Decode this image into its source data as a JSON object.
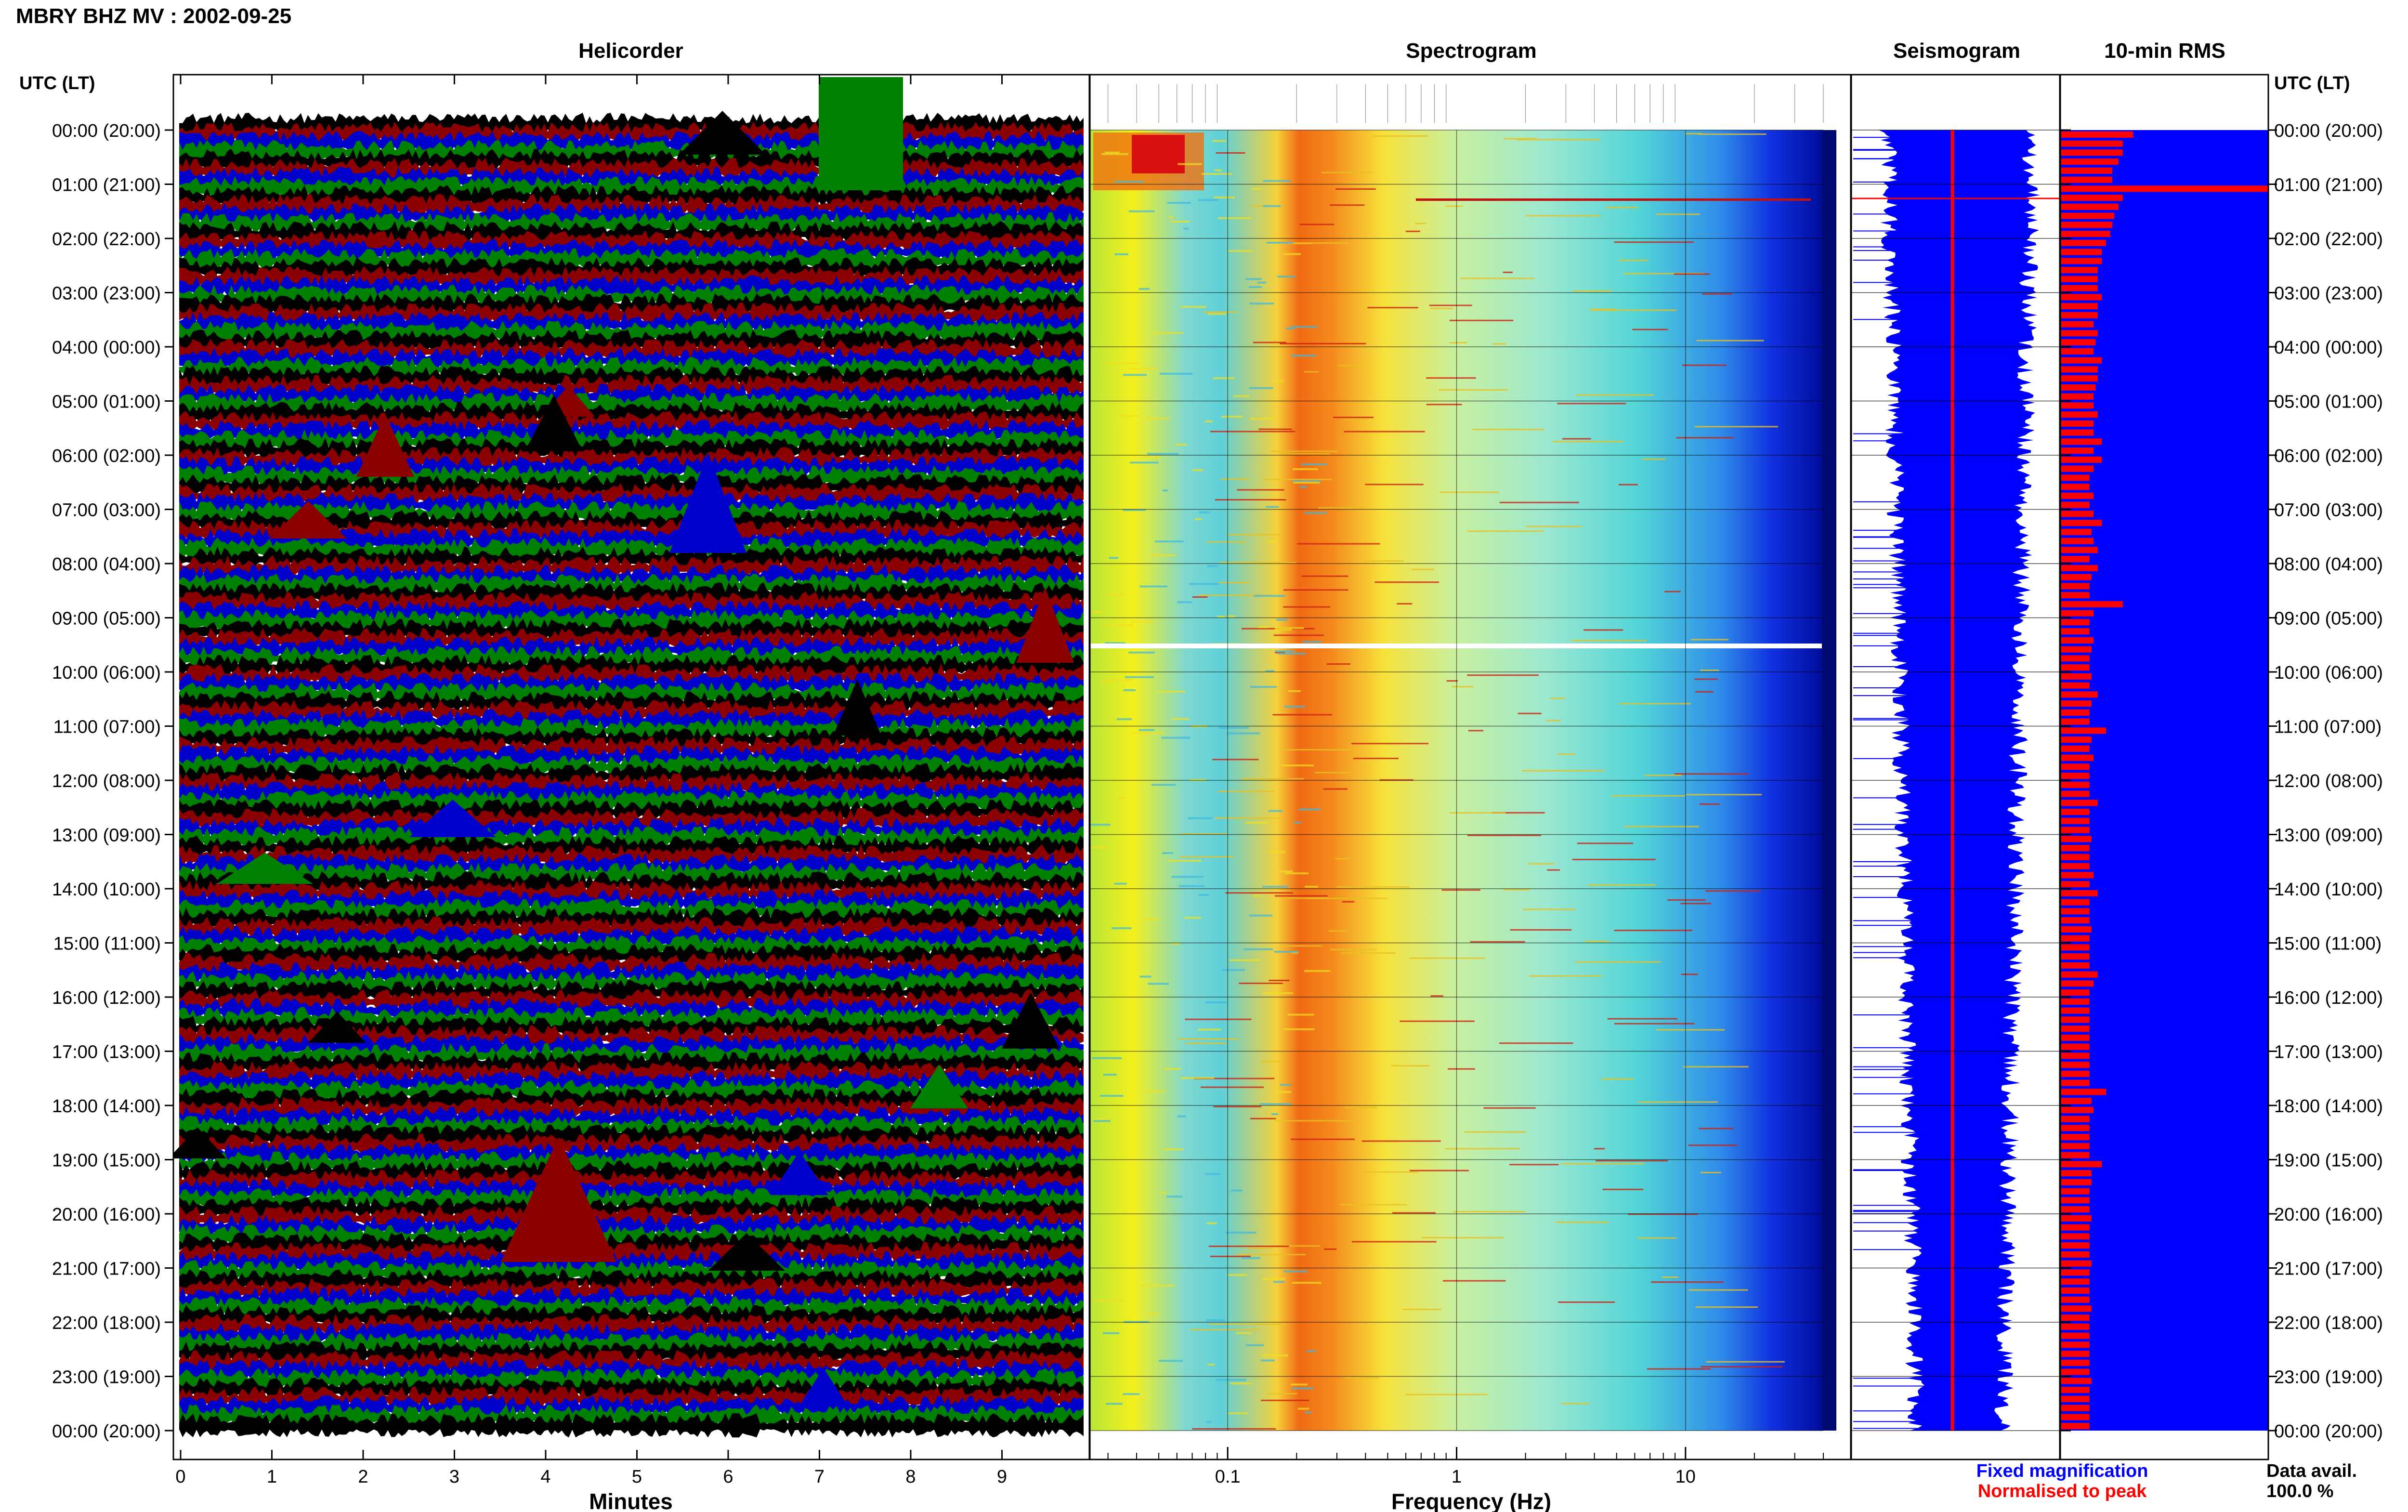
{
  "title": "MBRY BHZ MV : 2002-09-25",
  "panels": {
    "helicorder": "Helicorder",
    "spectrogram": "Spectrogram",
    "seismogram": "Seismogram",
    "rms": "10-min RMS"
  },
  "axis_header_left": "UTC (LT)",
  "axis_header_right": "UTC (LT)",
  "time_labels": [
    "00:00 (20:00)",
    "01:00 (21:00)",
    "02:00 (22:00)",
    "03:00 (23:00)",
    "04:00 (00:00)",
    "05:00 (01:00)",
    "06:00 (02:00)",
    "07:00 (03:00)",
    "08:00 (04:00)",
    "09:00 (05:00)",
    "10:00 (06:00)",
    "11:00 (07:00)",
    "12:00 (08:00)",
    "13:00 (09:00)",
    "14:00 (10:00)",
    "15:00 (11:00)",
    "16:00 (12:00)",
    "17:00 (13:00)",
    "18:00 (14:00)",
    "19:00 (15:00)",
    "20:00 (16:00)",
    "21:00 (17:00)",
    "22:00 (18:00)",
    "23:00 (19:00)",
    "00:00 (20:00)"
  ],
  "helicorder_xlabel": "Minutes",
  "helicorder_ticks": [
    "0",
    "1",
    "2",
    "3",
    "4",
    "5",
    "6",
    "7",
    "8",
    "9"
  ],
  "spectrogram_xlabel": "Frequency (Hz)",
  "spectrogram_ticks": [
    "0.1",
    "1",
    "10"
  ],
  "legend": {
    "fixed": "Fixed magnification",
    "normalised": "Normalised to peak",
    "fixed_color": "#0000ff",
    "normalised_color": "#ff0000"
  },
  "data_avail_label": "Data avail.",
  "data_avail_value": "100.0 %",
  "colors": {
    "trace_cycle": [
      "#000000",
      "#8b0000",
      "#0000cd",
      "#008000"
    ],
    "rms_fill": "#0000ff",
    "rms_bar": "#ff0000",
    "seismogram_fill": "#0000ff",
    "seismogram_center": "#ff0000"
  },
  "chart_data": [
    {
      "type": "line",
      "name": "helicorder",
      "xlabel": "Minutes",
      "xlim": [
        0,
        10
      ],
      "ylim_hours": [
        0,
        24
      ]
    },
    {
      "type": "heatmap",
      "name": "spectrogram",
      "xlabel": "Frequency (Hz)",
      "x_scale": "log",
      "xlim": [
        0.025,
        40
      ],
      "ylim_hours": [
        0,
        24
      ]
    },
    {
      "type": "bar",
      "name": "10-min RMS",
      "ylim_hours": [
        0,
        24
      ],
      "values_relative": [
        0.35,
        0.3,
        0.3,
        0.28,
        0.25,
        0.25,
        1.0,
        0.3,
        0.28,
        0.26,
        0.25,
        0.24,
        0.22,
        0.2,
        0.2,
        0.18,
        0.18,
        0.18,
        0.2,
        0.18,
        0.18,
        0.16,
        0.18,
        0.17,
        0.16,
        0.2,
        0.18,
        0.18,
        0.17,
        0.16,
        0.16,
        0.18,
        0.16,
        0.16,
        0.2,
        0.16,
        0.2,
        0.16,
        0.14,
        0.14,
        0.16,
        0.14,
        0.16,
        0.2,
        0.15,
        0.16,
        0.18,
        0.14,
        0.18,
        0.15,
        0.14,
        0.14,
        0.3,
        0.16,
        0.14,
        0.14,
        0.16,
        0.15,
        0.14,
        0.14,
        0.15,
        0.14,
        0.18,
        0.15,
        0.14,
        0.14,
        0.22,
        0.15,
        0.14,
        0.16,
        0.14,
        0.14,
        0.14,
        0.14,
        0.18,
        0.14,
        0.14,
        0.14,
        0.15,
        0.14,
        0.14,
        0.14,
        0.16,
        0.14,
        0.18,
        0.14,
        0.14,
        0.14,
        0.15,
        0.14,
        0.14,
        0.14,
        0.14,
        0.18,
        0.16,
        0.14,
        0.14,
        0.14,
        0.14,
        0.14,
        0.14,
        0.14,
        0.14,
        0.14,
        0.14,
        0.14,
        0.22,
        0.15,
        0.16,
        0.14,
        0.14,
        0.14,
        0.14,
        0.14,
        0.2,
        0.15,
        0.15,
        0.14,
        0.14,
        0.14,
        0.15,
        0.14,
        0.14,
        0.14,
        0.14,
        0.15,
        0.14,
        0.14,
        0.14,
        0.14,
        0.15,
        0.14,
        0.14,
        0.14,
        0.14,
        0.14,
        0.14,
        0.14,
        0.15,
        0.14,
        0.14,
        0.14,
        0.14,
        0.14
      ]
    }
  ]
}
